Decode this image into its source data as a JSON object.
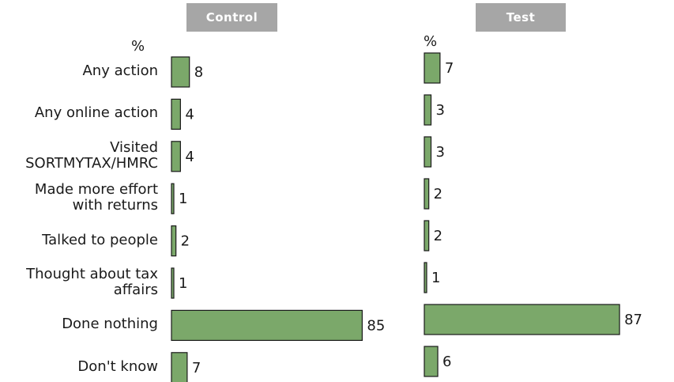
{
  "chart_data": {
    "type": "bar",
    "orientation": "horizontal",
    "unit": "%",
    "categories": [
      "Any action",
      "Any online action",
      "Visited\nSORTMYTAX/HMRC",
      "Made more effort\nwith returns",
      "Talked to people",
      "Thought about tax\naffairs",
      "Done nothing",
      "Don't know"
    ],
    "series": [
      {
        "name": "Control",
        "values": [
          8,
          4,
          4,
          1,
          2,
          1,
          85,
          7
        ]
      },
      {
        "name": "Test",
        "values": [
          7,
          3,
          3,
          2,
          2,
          1,
          87,
          6
        ]
      }
    ],
    "xlim": [
      0,
      90
    ],
    "grid": false,
    "bar_color": "#7ba86a",
    "bar_edge_color": "#1a1a1a"
  }
}
